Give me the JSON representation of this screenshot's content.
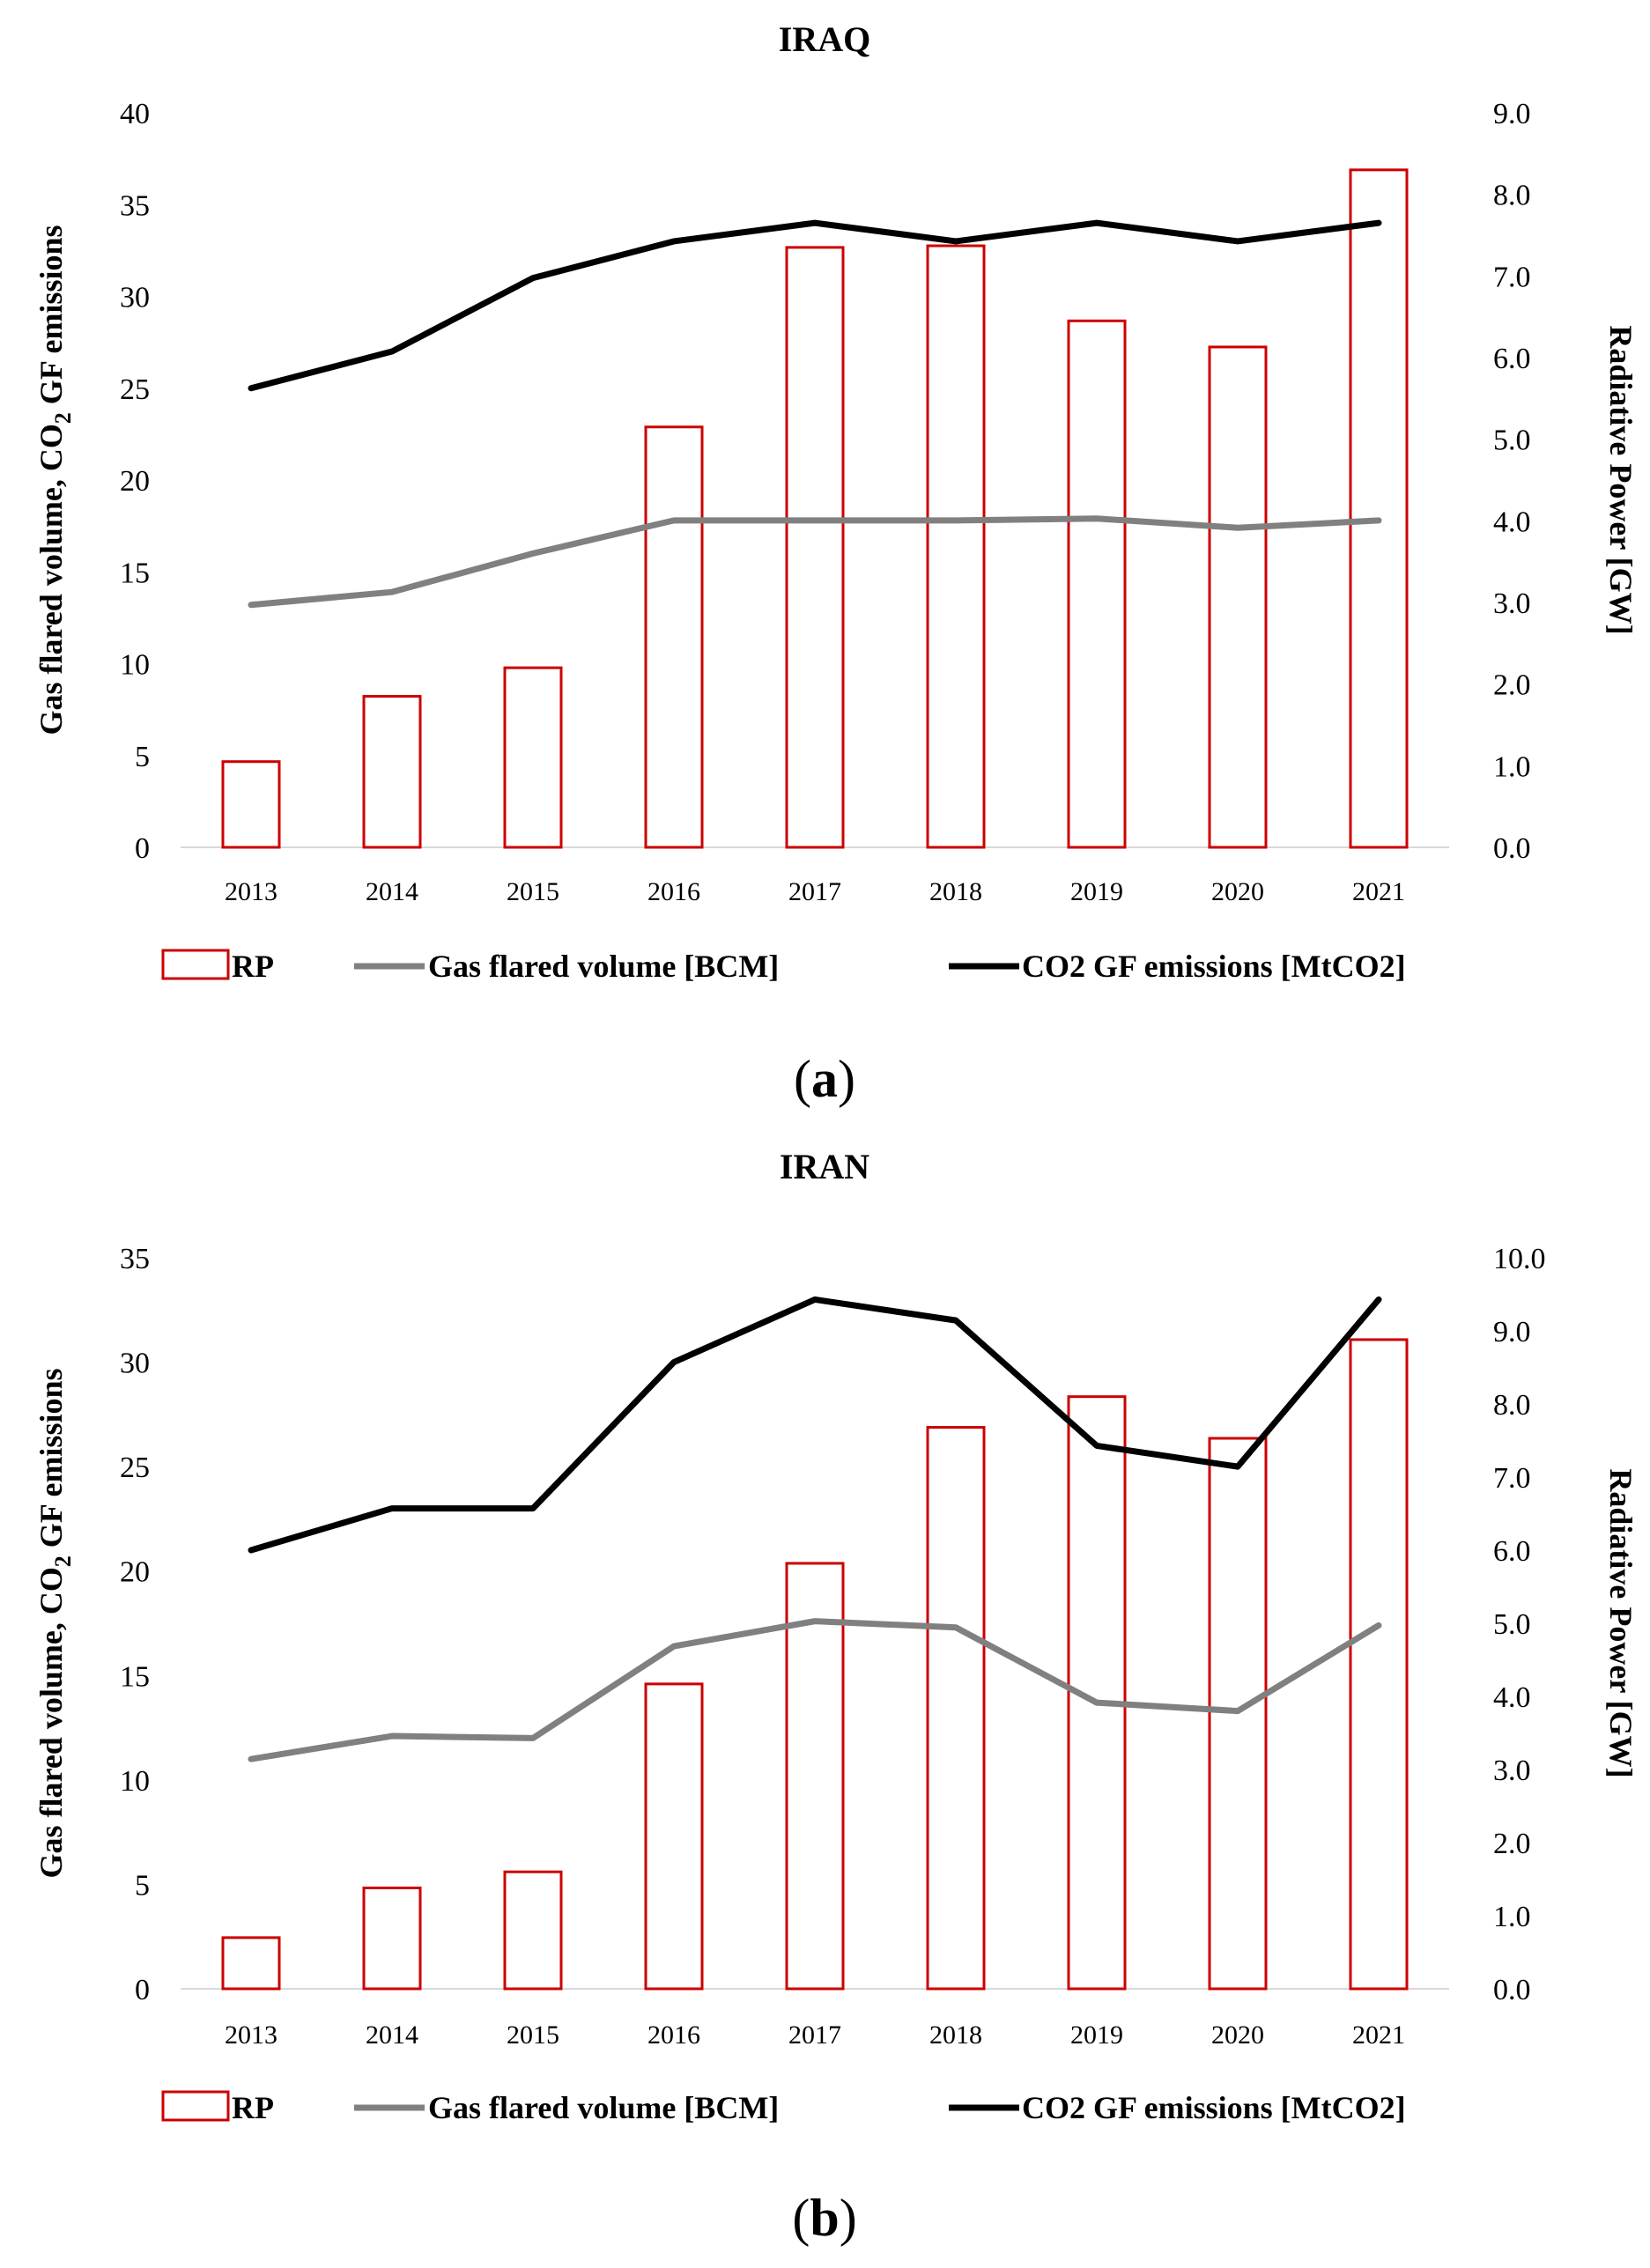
{
  "chart_data": [
    {
      "type": "bar+line",
      "title": "IRAQ",
      "panel_label": "a",
      "categories": [
        "2013",
        "2014",
        "2015",
        "2016",
        "2017",
        "2018",
        "2019",
        "2020",
        "2021"
      ],
      "left_axis": {
        "title_main": "Gas flared volume, CO",
        "title_sub": "2",
        "title_tail": " GF emissions",
        "ylim": [
          0,
          40
        ],
        "ticks": [
          0,
          5,
          10,
          15,
          20,
          25,
          30,
          35,
          40
        ],
        "tick_labels": [
          "0",
          "5",
          "10",
          "15",
          "20",
          "25",
          "30",
          "35",
          "40"
        ]
      },
      "right_axis": {
        "title": "Radiative Power [GW]",
        "ylim": [
          0,
          9
        ],
        "ticks": [
          0,
          1,
          2,
          3,
          4,
          5,
          6,
          7,
          8,
          9
        ],
        "tick_labels": [
          "0.0",
          "1.0",
          "2.0",
          "3.0",
          "4.0",
          "5.0",
          "6.0",
          "7.0",
          "8.0",
          "9.0"
        ]
      },
      "series": [
        {
          "name": "RP",
          "kind": "bar",
          "axis": "right",
          "color": "#cc0000",
          "values": [
            1.05,
            1.85,
            2.2,
            5.15,
            7.35,
            7.37,
            6.45,
            6.13,
            8.3
          ]
        },
        {
          "name": "Gas flared volume [BCM]",
          "kind": "line",
          "axis": "left",
          "color": "#808080",
          "values": [
            13.2,
            13.9,
            16.0,
            17.8,
            17.8,
            17.8,
            17.9,
            17.4,
            17.8
          ]
        },
        {
          "name": "CO2 GF emissions [MtCO2]",
          "kind": "line",
          "axis": "left",
          "color": "#000000",
          "values": [
            25.0,
            27.0,
            31.0,
            33.0,
            34.0,
            33.0,
            34.0,
            33.0,
            34.0
          ]
        }
      ]
    },
    {
      "type": "bar+line",
      "title": "IRAN",
      "panel_label": "b",
      "categories": [
        "2013",
        "2014",
        "2015",
        "2016",
        "2017",
        "2018",
        "2019",
        "2020",
        "2021"
      ],
      "left_axis": {
        "title_main": "Gas flared volume, CO",
        "title_sub": "2",
        "title_tail": " GF emissions",
        "ylim": [
          0,
          35
        ],
        "ticks": [
          0,
          5,
          10,
          15,
          20,
          25,
          30,
          35
        ],
        "tick_labels": [
          "0",
          "5",
          "10",
          "15",
          "20",
          "25",
          "30",
          "35"
        ]
      },
      "right_axis": {
        "title": "Radiative Power [GW]",
        "ylim": [
          0,
          10
        ],
        "ticks": [
          0,
          1,
          2,
          3,
          4,
          5,
          6,
          7,
          8,
          9,
          10
        ],
        "tick_labels": [
          "0.0",
          "1.0",
          "2.0",
          "3.0",
          "4.0",
          "5.0",
          "6.0",
          "7.0",
          "8.0",
          "9.0",
          "10.0"
        ]
      },
      "series": [
        {
          "name": "RP",
          "kind": "bar",
          "axis": "right",
          "color": "#cc0000",
          "values": [
            0.7,
            1.38,
            1.6,
            4.17,
            5.82,
            7.68,
            8.1,
            7.53,
            8.88
          ]
        },
        {
          "name": "Gas flared volume [BCM]",
          "kind": "line",
          "axis": "left",
          "color": "#808080",
          "values": [
            11.0,
            12.1,
            12.0,
            16.4,
            17.6,
            17.3,
            13.7,
            13.3,
            17.4
          ]
        },
        {
          "name": "CO2 GF emissions [MtCO2]",
          "kind": "line",
          "axis": "left",
          "color": "#000000",
          "values": [
            21.0,
            23.0,
            23.0,
            30.0,
            33.0,
            32.0,
            26.0,
            25.0,
            33.0
          ]
        }
      ]
    }
  ]
}
